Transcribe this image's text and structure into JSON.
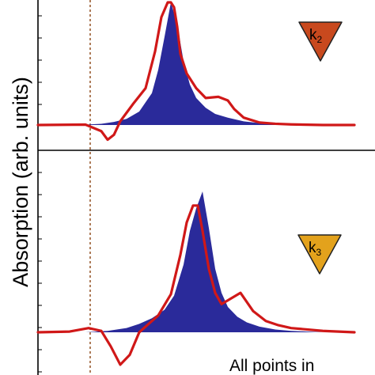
{
  "chart_data": {
    "type": "area",
    "ylabel": "Absorption (arb. units)",
    "caption": "All points in",
    "colors": {
      "fill_series": "#2a2a9a",
      "line_series": "#d01818",
      "reference_line": "#8b4513",
      "frame": "#000000",
      "marker_k2": "#c8491e",
      "marker_k3": "#e3a21c"
    },
    "x_range": [
      0,
      1
    ],
    "reference_x": 0.23,
    "panels": [
      {
        "marker": {
          "letter": "k",
          "subscript": "2"
        },
        "fill_series": {
          "x": [
            0.08,
            0.15,
            0.2,
            0.24,
            0.28,
            0.32,
            0.36,
            0.38,
            0.4,
            0.42,
            0.44,
            0.46,
            0.48,
            0.5,
            0.53,
            0.56,
            0.6,
            0.65,
            0.7,
            0.8,
            0.9
          ],
          "y": [
            0,
            0.003,
            0.01,
            0.025,
            0.05,
            0.11,
            0.26,
            0.45,
            0.72,
            1.0,
            0.82,
            0.52,
            0.33,
            0.22,
            0.14,
            0.09,
            0.06,
            0.03,
            0.015,
            0.005,
            0
          ]
        },
        "line_series": {
          "x": [
            0.0,
            0.15,
            0.2,
            0.22,
            0.24,
            0.26,
            0.28,
            0.3,
            0.34,
            0.37,
            0.39,
            0.41,
            0.42,
            0.43,
            0.44,
            0.45,
            0.47,
            0.5,
            0.53,
            0.57,
            0.6,
            0.62,
            0.65,
            0.7,
            0.75,
            0.8,
            0.9,
            1.0
          ],
          "y": [
            0,
            0.003,
            -0.05,
            -0.12,
            -0.08,
            0.03,
            0.1,
            0.17,
            0.3,
            0.6,
            0.88,
            1.0,
            1.0,
            0.96,
            0.8,
            0.58,
            0.42,
            0.3,
            0.22,
            0.23,
            0.2,
            0.13,
            0.06,
            0.02,
            0.01,
            0.005,
            0,
            0
          ]
        }
      },
      {
        "marker": {
          "letter": "k",
          "subscript": "3"
        },
        "fill_series": {
          "x": [
            0.15,
            0.22,
            0.28,
            0.32,
            0.36,
            0.4,
            0.43,
            0.46,
            0.48,
            0.5,
            0.52,
            0.54,
            0.56,
            0.58,
            0.6,
            0.63,
            0.66,
            0.7,
            0.75,
            0.8,
            0.9
          ],
          "y": [
            0,
            0.01,
            0.03,
            0.06,
            0.1,
            0.16,
            0.26,
            0.48,
            0.72,
            0.88,
            1.0,
            0.74,
            0.45,
            0.28,
            0.18,
            0.11,
            0.07,
            0.04,
            0.02,
            0.01,
            0
          ]
        },
        "line_series": {
          "x": [
            0.0,
            0.1,
            0.16,
            0.2,
            0.23,
            0.26,
            0.29,
            0.32,
            0.35,
            0.38,
            0.42,
            0.45,
            0.47,
            0.49,
            0.505,
            0.52,
            0.54,
            0.56,
            0.58,
            0.61,
            0.64,
            0.68,
            0.72,
            0.76,
            0.8,
            0.85,
            0.9,
            0.95,
            1.0
          ],
          "y": [
            0,
            0.005,
            0.03,
            0.01,
            -0.1,
            -0.23,
            -0.16,
            0,
            0.06,
            0.12,
            0.27,
            0.55,
            0.78,
            0.9,
            0.9,
            0.72,
            0.45,
            0.28,
            0.2,
            0.24,
            0.28,
            0.15,
            0.08,
            0.05,
            0.03,
            0.02,
            0.01,
            0.005,
            0
          ]
        }
      }
    ]
  }
}
